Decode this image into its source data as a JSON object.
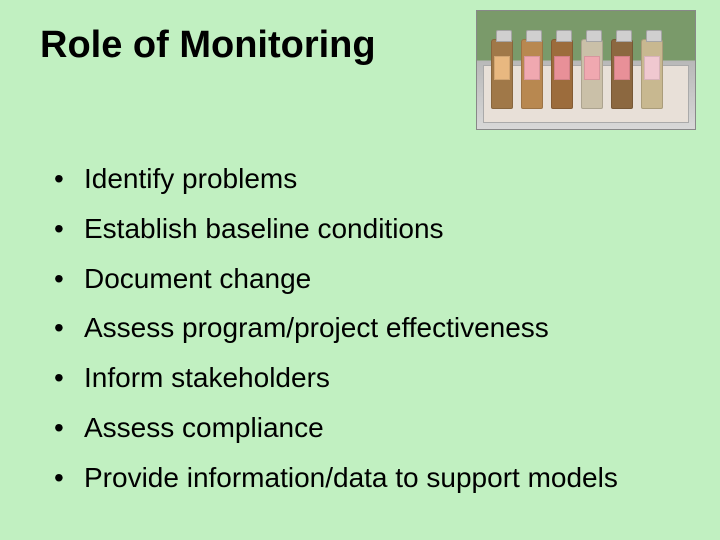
{
  "title": "Role of Monitoring",
  "bullets": [
    "Identify problems",
    "Establish baseline conditions",
    "Document change",
    "Assess program/project effectiveness",
    "Inform stakeholders",
    "Assess compliance",
    "Provide information/data to support models"
  ],
  "photo": {
    "description": "Row of six sample bottles with colored labels on a tray, outdoor field background",
    "bottles": [
      {
        "body_color": "#a07848",
        "label_color": "#e8b880"
      },
      {
        "body_color": "#b88850",
        "label_color": "#f0a8b0"
      },
      {
        "body_color": "#9c6c3c",
        "label_color": "#e89098"
      },
      {
        "body_color": "#cac0a8",
        "label_color": "#f0a8b0"
      },
      {
        "body_color": "#8c6840",
        "label_color": "#e89098"
      },
      {
        "body_color": "#c8b890",
        "label_color": "#f0c8d0"
      }
    ]
  },
  "colors": {
    "background": "#c1f0c1",
    "text": "#000000"
  },
  "typography": {
    "title_fontsize_pt": 28,
    "body_fontsize_pt": 21,
    "font_family": "Arial"
  }
}
